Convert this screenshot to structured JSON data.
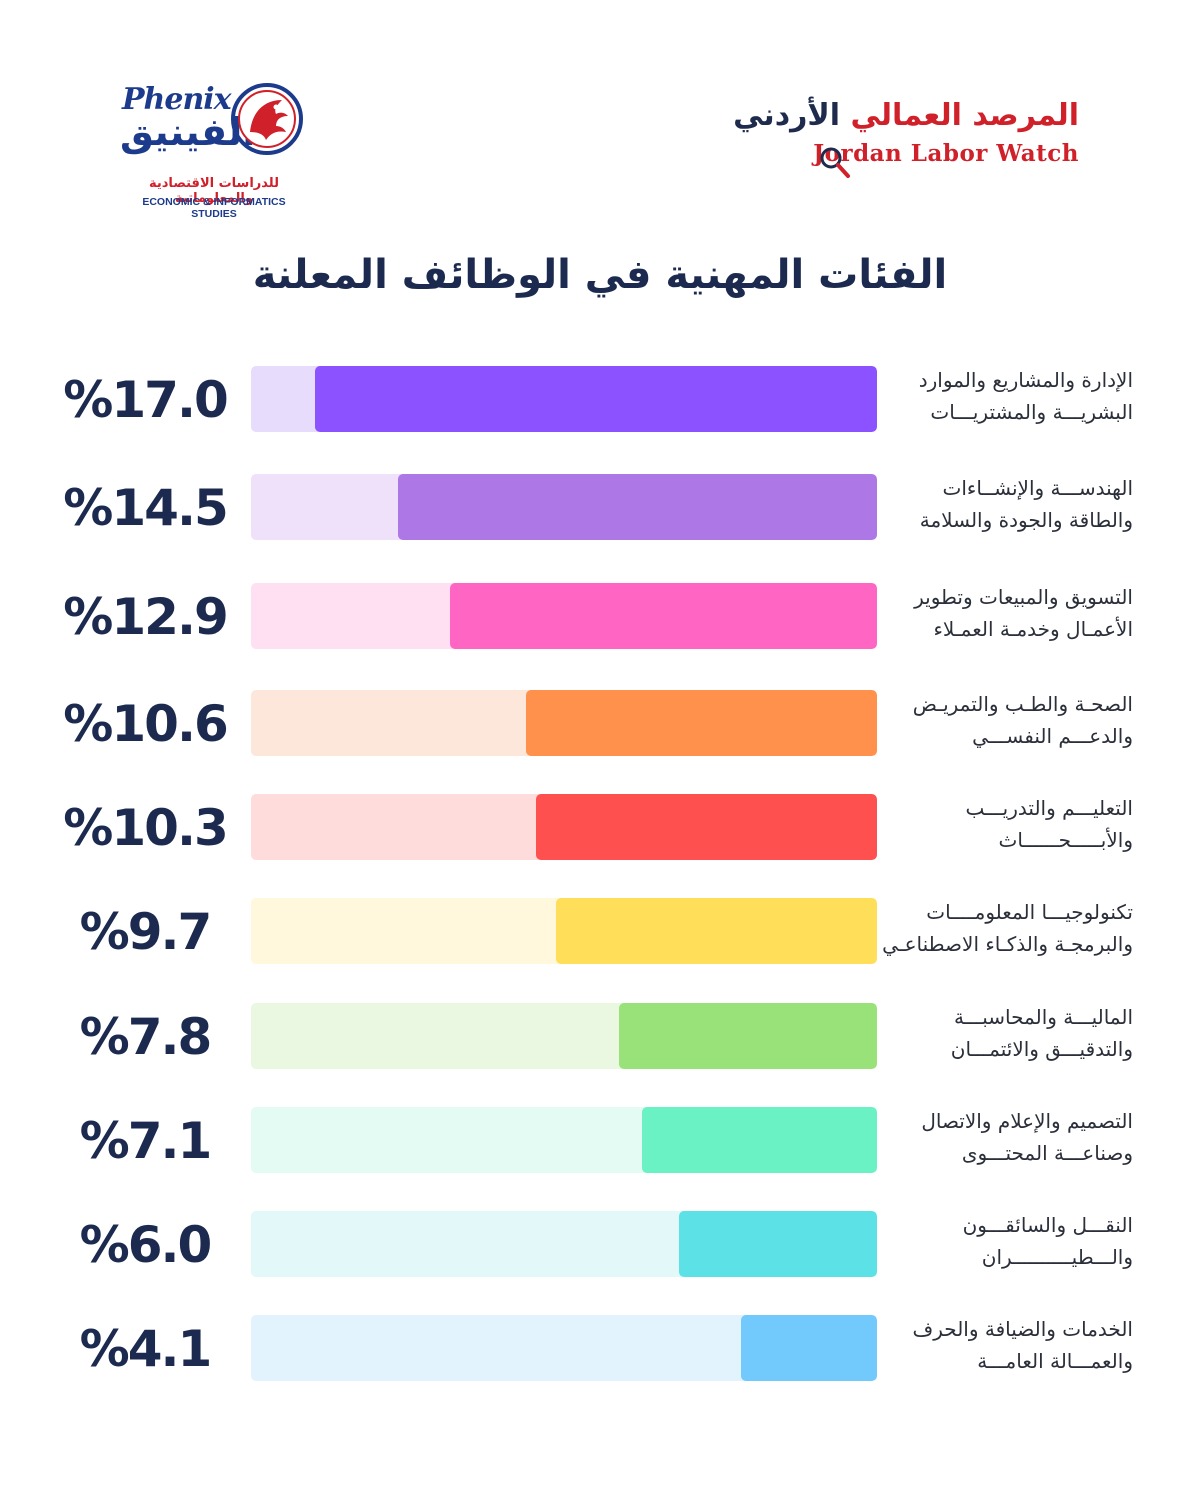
{
  "logos": {
    "phenix": {
      "script": "Phenix",
      "arabic": "الفينيق",
      "tag_ar": "للدراسات الاقتصادية والمعلوماتية",
      "tag_en": "ECONOMIC & INFORMATICS STUDIES"
    },
    "jlw": {
      "arabic_red": "المرصد العمالي",
      "arabic_navy": "الأردني",
      "english": "Jordan Labor Watch"
    }
  },
  "colors": {
    "title": "#1c2a4f",
    "brand_red": "#d0202a",
    "brand_navy": "#1c3b8c"
  },
  "chart_data": {
    "type": "bar",
    "title": "الفئات المهنية في الوظائف المعلنة",
    "unit": "%",
    "xlim": [
      0,
      17.0
    ],
    "categories": [
      [
        "الإدارة والمشاريع والموارد",
        "البشريـــة والمشتريـــات"
      ],
      [
        "الهندســـة والإنشــاءات",
        "والطاقة والجودة والسلامة"
      ],
      [
        "التسويق والمبيعات وتطوير",
        "الأعمـال وخدمـة العمـلاء"
      ],
      [
        "الصحـة والطـب والتمريـض",
        "والدعـــم النفســـي"
      ],
      [
        "التعليـــم والتدريـــب",
        "والأبـــــحــــــاث"
      ],
      [
        "تكنولوجيـــا المعلومــــات",
        "والبرمجـة والذكـاء الاصطناعـي"
      ],
      [
        "الماليـــة والمحاسبـــة",
        "والتدقيـــق والائتمـــان"
      ],
      [
        "التصميم والإعلام والاتصال",
        "وصناعـــة المحتـــوى"
      ],
      [
        "النقـــل والسائقـــون",
        "والـــطيــــــــــران"
      ],
      [
        "الخدمات والضيافة والحرف",
        "والعمـــالة العامـــة"
      ]
    ],
    "values": [
      17.0,
      14.5,
      12.9,
      10.6,
      10.3,
      9.7,
      7.8,
      7.1,
      6.0,
      4.1
    ],
    "value_labels": [
      "%17.0",
      "%14.5",
      "%12.9",
      "%10.6",
      "%10.3",
      "%9.7",
      "%7.8",
      "%7.1",
      "%6.0",
      "%4.1"
    ],
    "bar_colors": [
      "#8c52ff",
      "#ae77e6",
      "#ff66c4",
      "#ff914d",
      "#ff5050",
      "#ffde59",
      "#99e27a",
      "#6af2c4",
      "#5ce1e6",
      "#72c9fb"
    ],
    "track_colors": [
      "#e8dcfd",
      "#efe1fa",
      "#ffe0f3",
      "#fde7db",
      "#ffdcdc",
      "#fff8dc",
      "#eaf8e2",
      "#e4fbf3",
      "#e2f8f9",
      "#e3f3fd"
    ],
    "grid": false,
    "legend": "none"
  }
}
